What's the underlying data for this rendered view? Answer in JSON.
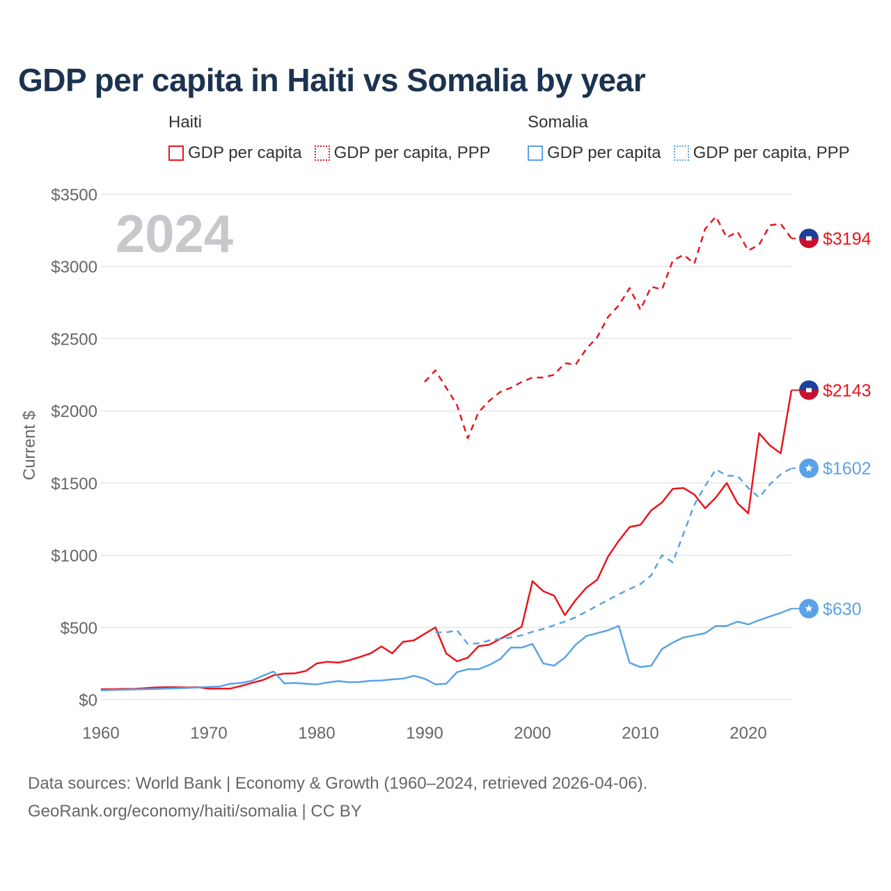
{
  "colors": {
    "haiti": "#e8151d",
    "somalia": "#5aa2e8",
    "year_label": "#c8c8cc",
    "grid": "#e6e6e6",
    "axis_text": "#666666"
  },
  "chart_data": {
    "type": "line",
    "title": "GDP per capita in Haiti vs Somalia by year",
    "ylabel": "Current $",
    "xlabel": "",
    "year_label": "2024",
    "xlim": [
      1960,
      2024
    ],
    "ylim": [
      0,
      3500
    ],
    "x_ticks": [
      1960,
      1970,
      1980,
      1990,
      2000,
      2010,
      2020
    ],
    "x_tick_labels": [
      "1960",
      "1970",
      "1980",
      "1990",
      "2000",
      "2010",
      "2020"
    ],
    "y_ticks": [
      0,
      500,
      1000,
      1500,
      2000,
      2500,
      3000,
      3500
    ],
    "y_tick_labels": [
      "$0",
      "$500",
      "$1000",
      "$1500",
      "$2000",
      "$2500",
      "$3000",
      "$3500"
    ],
    "legend": {
      "groups": [
        {
          "name": "Haiti",
          "items": [
            {
              "label": "GDP per capita",
              "style": "solid"
            },
            {
              "label": "GDP per capita, PPP",
              "style": "dotted"
            }
          ]
        },
        {
          "name": "Somalia",
          "items": [
            {
              "label": "GDP per capita",
              "style": "solid"
            },
            {
              "label": "GDP per capita, PPP",
              "style": "dotted"
            }
          ]
        }
      ]
    },
    "series": [
      {
        "name": "Haiti GDP per capita",
        "country": "haiti",
        "style": "solid",
        "end_label": "$2143",
        "x": [
          1960,
          1961,
          1962,
          1963,
          1964,
          1965,
          1966,
          1967,
          1968,
          1969,
          1970,
          1971,
          1972,
          1973,
          1974,
          1975,
          1976,
          1977,
          1978,
          1979,
          1980,
          1981,
          1982,
          1983,
          1984,
          1985,
          1986,
          1987,
          1988,
          1989,
          1990,
          1991,
          1992,
          1993,
          1994,
          1995,
          1996,
          1997,
          1998,
          1999,
          2000,
          2001,
          2002,
          2003,
          2004,
          2005,
          2006,
          2007,
          2008,
          2009,
          2010,
          2011,
          2012,
          2013,
          2014,
          2015,
          2016,
          2017,
          2018,
          2019,
          2020,
          2021,
          2022,
          2023,
          2024
        ],
        "values": [
          72,
          72,
          74,
          74,
          78,
          84,
          86,
          86,
          84,
          86,
          75,
          76,
          76,
          95,
          115,
          135,
          168,
          180,
          182,
          198,
          250,
          262,
          256,
          272,
          295,
          320,
          368,
          320,
          400,
          410,
          455,
          500,
          320,
          265,
          290,
          370,
          380,
          420,
          460,
          505,
          820,
          750,
          720,
          585,
          690,
          775,
          830,
          990,
          1100,
          1195,
          1210,
          1310,
          1365,
          1460,
          1465,
          1420,
          1325,
          1400,
          1500,
          1360,
          1290,
          1845,
          1760,
          1705,
          2143
        ]
      },
      {
        "name": "Haiti GDP per capita, PPP",
        "country": "haiti",
        "style": "dashed",
        "end_label": "$3194",
        "x": [
          1990,
          1991,
          1992,
          1993,
          1994,
          1995,
          1996,
          1997,
          1998,
          1999,
          2000,
          2001,
          2002,
          2003,
          2004,
          2005,
          2006,
          2007,
          2008,
          2009,
          2010,
          2011,
          2012,
          2013,
          2014,
          2015,
          2016,
          2017,
          2018,
          2019,
          2020,
          2021,
          2022,
          2023,
          2024
        ],
        "values": [
          2200,
          2280,
          2160,
          2040,
          1810,
          1990,
          2070,
          2130,
          2160,
          2200,
          2230,
          2230,
          2250,
          2330,
          2320,
          2430,
          2510,
          2650,
          2730,
          2850,
          2700,
          2860,
          2840,
          3040,
          3080,
          3020,
          3260,
          3345,
          3200,
          3240,
          3110,
          3150,
          3285,
          3295,
          3194
        ]
      },
      {
        "name": "Somalia GDP per capita",
        "country": "somalia",
        "style": "solid",
        "end_label": "$630",
        "x": [
          1960,
          1961,
          1962,
          1963,
          1964,
          1965,
          1966,
          1967,
          1968,
          1969,
          1970,
          1971,
          1972,
          1973,
          1974,
          1975,
          1976,
          1977,
          1978,
          1979,
          1980,
          1981,
          1982,
          1983,
          1984,
          1985,
          1986,
          1987,
          1988,
          1989,
          1990,
          1991,
          1992,
          1993,
          1994,
          1995,
          1996,
          1997,
          1998,
          1999,
          2000,
          2001,
          2002,
          2003,
          2004,
          2005,
          2006,
          2007,
          2008,
          2009,
          2010,
          2011,
          2012,
          2013,
          2014,
          2015,
          2016,
          2017,
          2018,
          2019,
          2020,
          2021,
          2022,
          2023,
          2024
        ],
        "values": [
          64,
          66,
          68,
          70,
          72,
          74,
          76,
          78,
          80,
          84,
          88,
          90,
          110,
          115,
          130,
          165,
          195,
          112,
          115,
          110,
          105,
          118,
          128,
          120,
          122,
          130,
          132,
          140,
          145,
          165,
          145,
          105,
          110,
          190,
          210,
          210,
          240,
          280,
          360,
          360,
          385,
          250,
          235,
          290,
          380,
          440,
          460,
          480,
          510,
          255,
          225,
          235,
          350,
          395,
          430,
          445,
          460,
          510,
          510,
          540,
          520,
          550,
          575,
          600,
          630
        ]
      },
      {
        "name": "Somalia GDP per capita, PPP",
        "country": "somalia",
        "style": "dashed",
        "end_label": "$1602",
        "x": [
          1991,
          1992,
          1993,
          1994,
          1995,
          1996,
          1997,
          1998,
          1999,
          2000,
          2001,
          2002,
          2003,
          2004,
          2005,
          2006,
          2007,
          2008,
          2009,
          2010,
          2011,
          2012,
          2013,
          2014,
          2015,
          2016,
          2017,
          2018,
          2019,
          2020,
          2021,
          2022,
          2023,
          2024
        ],
        "values": [
          465,
          465,
          480,
          385,
          390,
          410,
          420,
          430,
          445,
          470,
          490,
          515,
          540,
          570,
          610,
          650,
          690,
          730,
          765,
          800,
          860,
          1000,
          950,
          1150,
          1350,
          1480,
          1595,
          1550,
          1550,
          1465,
          1400,
          1490,
          1560,
          1602
        ]
      }
    ]
  },
  "footer": {
    "line1": "Data sources: World Bank | Economy & Growth (1960–2024, retrieved 2026-04-06).",
    "line2": "GeoRank.org/economy/haiti/somalia | CC BY"
  }
}
